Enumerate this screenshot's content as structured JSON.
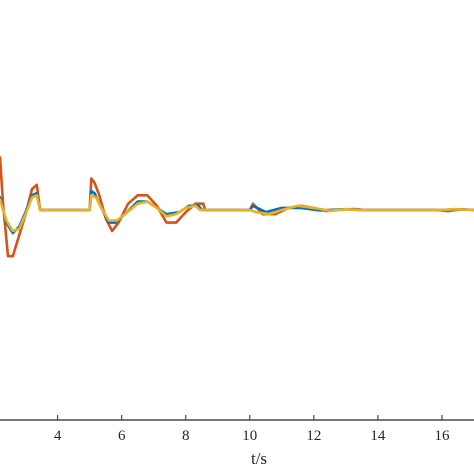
{
  "chart_data": {
    "type": "line",
    "xlabel": "t/s",
    "ylabel": "",
    "title": "",
    "xlim": [
      2.2,
      17.0
    ],
    "ylim": [
      -1.0,
      1.0
    ],
    "x_ticks": [
      "4",
      "6",
      "8",
      "10",
      "12",
      "14",
      "16"
    ],
    "grid": false,
    "series": [
      {
        "color": "#D95319",
        "points": [
          [
            2.2,
            0.25
          ],
          [
            2.3,
            0.02
          ],
          [
            2.45,
            -0.22
          ],
          [
            2.6,
            -0.22
          ],
          [
            2.8,
            -0.12
          ],
          [
            3.0,
            -0.02
          ],
          [
            3.2,
            0.1
          ],
          [
            3.35,
            0.12
          ],
          [
            3.45,
            0.0
          ],
          [
            3.5,
            0.0
          ],
          [
            5.0,
            0.0
          ],
          [
            5.05,
            0.15
          ],
          [
            5.15,
            0.13
          ],
          [
            5.3,
            0.07
          ],
          [
            5.5,
            -0.04
          ],
          [
            5.7,
            -0.1
          ],
          [
            5.9,
            -0.06
          ],
          [
            6.2,
            0.03
          ],
          [
            6.5,
            0.07
          ],
          [
            6.8,
            0.07
          ],
          [
            7.1,
            0.02
          ],
          [
            7.4,
            -0.06
          ],
          [
            7.7,
            -0.06
          ],
          [
            8.0,
            -0.01
          ],
          [
            8.3,
            0.03
          ],
          [
            8.55,
            0.03
          ],
          [
            8.6,
            0.0
          ],
          [
            10.0,
            0.0
          ],
          [
            10.1,
            0.03
          ],
          [
            10.4,
            -0.02
          ],
          [
            10.8,
            -0.02
          ],
          [
            11.2,
            0.01
          ],
          [
            11.6,
            0.02
          ],
          [
            12.0,
            0.01
          ],
          [
            12.4,
            -0.005
          ],
          [
            12.8,
            0.002
          ],
          [
            13.3,
            0.005
          ],
          [
            13.6,
            0.0
          ],
          [
            15.8,
            0.0
          ],
          [
            16.2,
            -0.005
          ],
          [
            16.6,
            0.004
          ],
          [
            17.0,
            0.0
          ]
        ]
      },
      {
        "color": "#0072BD",
        "points": [
          [
            2.2,
            0.06
          ],
          [
            2.4,
            -0.06
          ],
          [
            2.6,
            -0.11
          ],
          [
            2.8,
            -0.08
          ],
          [
            3.0,
            -0.01
          ],
          [
            3.2,
            0.07
          ],
          [
            3.35,
            0.08
          ],
          [
            3.45,
            0.0
          ],
          [
            3.5,
            0.0
          ],
          [
            5.0,
            0.0
          ],
          [
            5.05,
            0.09
          ],
          [
            5.15,
            0.08
          ],
          [
            5.3,
            0.03
          ],
          [
            5.6,
            -0.06
          ],
          [
            5.8,
            -0.06
          ],
          [
            6.1,
            -0.02
          ],
          [
            6.5,
            0.04
          ],
          [
            6.8,
            0.04
          ],
          [
            7.1,
            0.01
          ],
          [
            7.4,
            -0.02
          ],
          [
            7.8,
            -0.01
          ],
          [
            8.1,
            0.02
          ],
          [
            8.4,
            0.02
          ],
          [
            8.5,
            0.0
          ],
          [
            10.0,
            0.0
          ],
          [
            10.1,
            0.02
          ],
          [
            10.5,
            -0.01
          ],
          [
            11.0,
            0.01
          ],
          [
            11.6,
            0.01
          ],
          [
            12.2,
            -0.002
          ],
          [
            13.0,
            0.004
          ],
          [
            13.4,
            0.0
          ],
          [
            16.0,
            0.0
          ],
          [
            16.4,
            0.004
          ],
          [
            17.0,
            0.0
          ]
        ]
      },
      {
        "color": "#EDB120",
        "points": [
          [
            2.2,
            0.05
          ],
          [
            2.4,
            -0.05
          ],
          [
            2.6,
            -0.1
          ],
          [
            2.8,
            -0.09
          ],
          [
            3.0,
            -0.02
          ],
          [
            3.2,
            0.06
          ],
          [
            3.35,
            0.07
          ],
          [
            3.45,
            0.0
          ],
          [
            3.5,
            0.0
          ],
          [
            5.0,
            0.0
          ],
          [
            5.05,
            0.07
          ],
          [
            5.2,
            0.06
          ],
          [
            5.4,
            0.0
          ],
          [
            5.6,
            -0.05
          ],
          [
            5.85,
            -0.05
          ],
          [
            6.1,
            -0.02
          ],
          [
            6.5,
            0.03
          ],
          [
            6.8,
            0.04
          ],
          [
            7.1,
            0.01
          ],
          [
            7.4,
            -0.03
          ],
          [
            7.7,
            -0.02
          ],
          [
            8.0,
            0.01
          ],
          [
            8.3,
            0.02
          ],
          [
            8.45,
            0.0
          ],
          [
            10.0,
            0.0
          ],
          [
            10.2,
            -0.01
          ],
          [
            10.6,
            -0.02
          ],
          [
            11.0,
            0.0
          ],
          [
            11.5,
            0.02
          ],
          [
            12.0,
            0.01
          ],
          [
            12.5,
            -0.004
          ],
          [
            13.0,
            0.004
          ],
          [
            13.4,
            0.0
          ],
          [
            16.0,
            0.0
          ],
          [
            16.4,
            0.004
          ],
          [
            17.0,
            0.0
          ]
        ]
      }
    ]
  }
}
